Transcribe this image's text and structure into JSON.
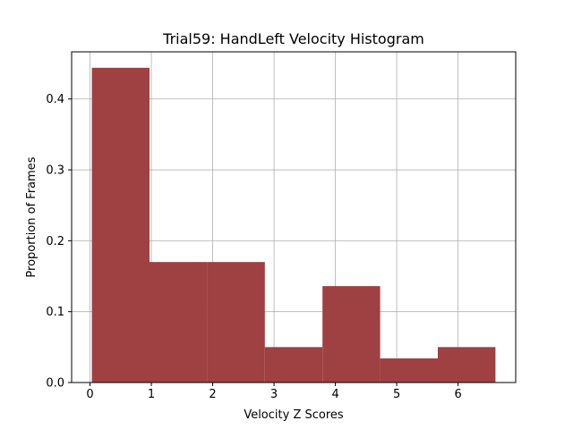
{
  "chart_data": {
    "type": "bar",
    "title": "Trial59: HandLeft Velocity Histogram",
    "xlabel": "Velocity Z Scores",
    "ylabel": "Proportion of Frames",
    "bins": [
      {
        "start": 0.03,
        "end": 0.97,
        "value": 0.444
      },
      {
        "start": 0.97,
        "end": 1.91,
        "value": 0.17
      },
      {
        "start": 1.91,
        "end": 2.85,
        "value": 0.17
      },
      {
        "start": 2.85,
        "end": 3.79,
        "value": 0.05
      },
      {
        "start": 3.79,
        "end": 4.73,
        "value": 0.136
      },
      {
        "start": 4.73,
        "end": 5.67,
        "value": 0.034
      },
      {
        "start": 5.67,
        "end": 6.61,
        "value": 0.05
      }
    ],
    "xlim": [
      -0.3,
      6.94
    ],
    "ylim": [
      0,
      0.4665
    ],
    "xticks": [
      "0",
      "1",
      "2",
      "3",
      "4",
      "5",
      "6"
    ],
    "yticks": [
      "0.0",
      "0.1",
      "0.2",
      "0.3",
      "0.4"
    ],
    "bar_color": "#9f4042",
    "grid": true,
    "grid_color": "#b0b0b0"
  }
}
